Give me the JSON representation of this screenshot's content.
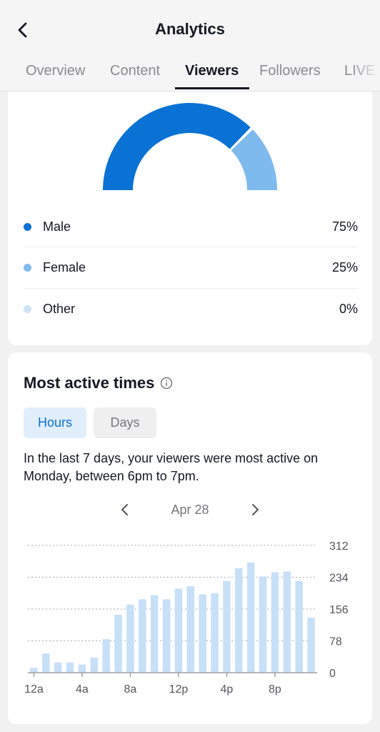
{
  "header": {
    "title": "Analytics",
    "tabs": [
      {
        "label": "Overview",
        "active": false
      },
      {
        "label": "Content",
        "active": false
      },
      {
        "label": "Viewers",
        "active": true
      },
      {
        "label": "Followers",
        "active": false
      },
      {
        "label": "LIVE",
        "active": false
      }
    ]
  },
  "gender": {
    "items": [
      {
        "label": "Male",
        "percent": 75,
        "value": "75%",
        "color": "#0a72d4"
      },
      {
        "label": "Female",
        "percent": 25,
        "value": "25%",
        "color": "#7fbaee"
      },
      {
        "label": "Other",
        "percent": 0,
        "value": "0%",
        "color": "#cfe3f7"
      }
    ]
  },
  "active_times": {
    "title": "Most active times",
    "toggle": {
      "hours": "Hours",
      "days": "Days",
      "selected": "hours"
    },
    "summary": "In the last 7 days, your viewers were most active on Monday, between 6pm to 7pm.",
    "date": "Apr 28"
  },
  "chart_data": {
    "type": "bar",
    "categories": [
      "12a",
      "1a",
      "2a",
      "3a",
      "4a",
      "5a",
      "6a",
      "7a",
      "8a",
      "9a",
      "10a",
      "11a",
      "12p",
      "1p",
      "2p",
      "3p",
      "4p",
      "5p",
      "6p",
      "7p",
      "8p",
      "9p",
      "10p",
      "11p"
    ],
    "values": [
      12,
      47,
      25,
      25,
      20,
      37,
      82,
      142,
      167,
      180,
      190,
      180,
      206,
      212,
      192,
      195,
      225,
      256,
      270,
      236,
      246,
      248,
      225,
      135
    ],
    "xticks": [
      "12a",
      "4a",
      "8a",
      "12p",
      "4p",
      "8p"
    ],
    "yticks": [
      "312",
      "234",
      "156",
      "78",
      "0"
    ],
    "ylim": [
      0,
      312
    ],
    "color": "#c7e0f8",
    "grid": true
  }
}
